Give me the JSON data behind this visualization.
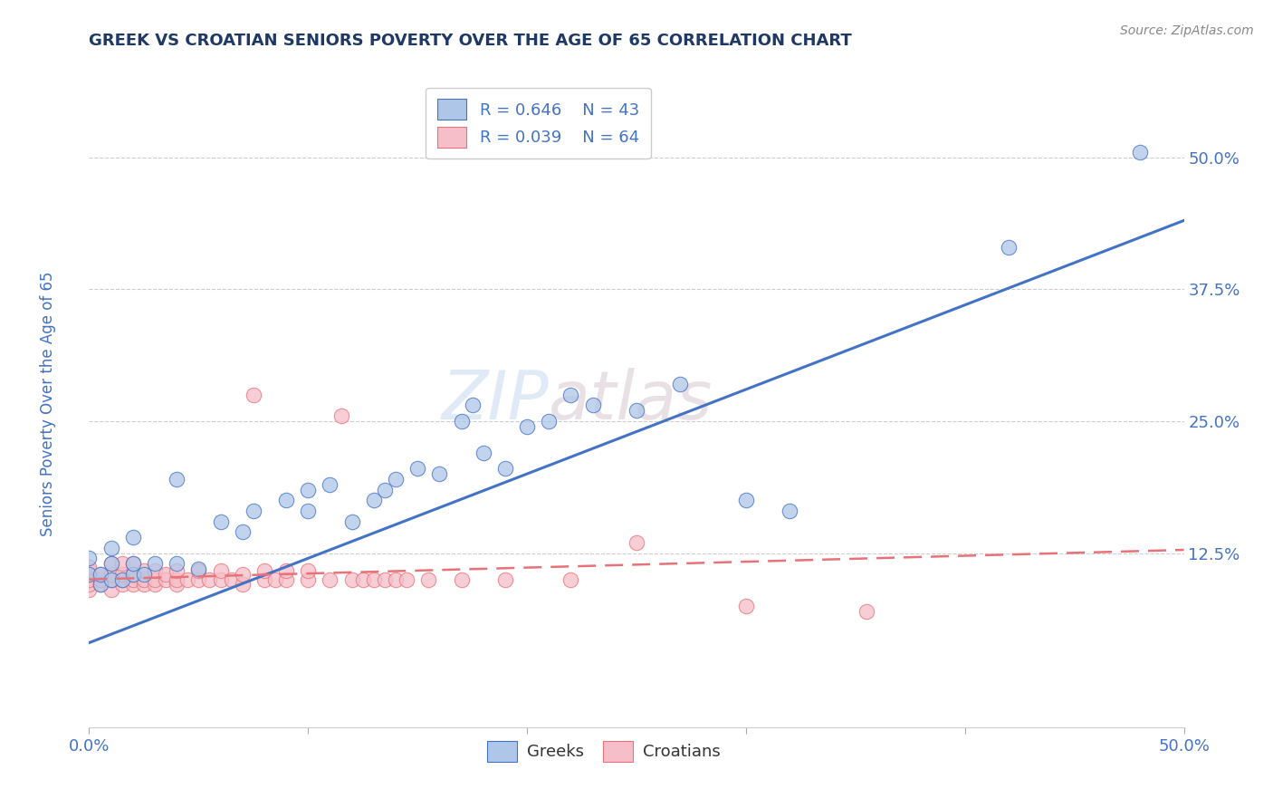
{
  "title": "GREEK VS CROATIAN SENIORS POVERTY OVER THE AGE OF 65 CORRELATION CHART",
  "source": "Source: ZipAtlas.com",
  "ylabel": "Seniors Poverty Over the Age of 65",
  "xlim": [
    0.0,
    0.5
  ],
  "ylim": [
    -0.04,
    0.58
  ],
  "xtick_positions": [
    0.0,
    0.1,
    0.2,
    0.3,
    0.4,
    0.5
  ],
  "xticklabels": [
    "0.0%",
    "",
    "",
    "",
    "",
    "50.0%"
  ],
  "ytick_positions": [
    0.125,
    0.25,
    0.375,
    0.5
  ],
  "ytick_labels": [
    "12.5%",
    "25.0%",
    "37.5%",
    "50.0%"
  ],
  "legend_r_greek": "R = 0.646",
  "legend_n_greek": "N = 43",
  "legend_r_croatian": "R = 0.039",
  "legend_n_croatian": "N = 64",
  "greek_color": "#aec6e8",
  "croatian_color": "#f5bec8",
  "greek_line_color": "#4472c4",
  "croatian_line_color": "#e8727a",
  "watermark_zip": "ZIP",
  "watermark_atlas": "atlas",
  "title_color": "#1f3864",
  "axis_label_color": "#4472c4",
  "tick_label_color": "#4472c4",
  "greek_scatter": [
    [
      0.0,
      0.105
    ],
    [
      0.0,
      0.12
    ],
    [
      0.005,
      0.095
    ],
    [
      0.005,
      0.105
    ],
    [
      0.01,
      0.1
    ],
    [
      0.01,
      0.115
    ],
    [
      0.01,
      0.13
    ],
    [
      0.015,
      0.1
    ],
    [
      0.02,
      0.105
    ],
    [
      0.02,
      0.115
    ],
    [
      0.02,
      0.14
    ],
    [
      0.025,
      0.105
    ],
    [
      0.03,
      0.115
    ],
    [
      0.04,
      0.115
    ],
    [
      0.04,
      0.195
    ],
    [
      0.05,
      0.11
    ],
    [
      0.06,
      0.155
    ],
    [
      0.07,
      0.145
    ],
    [
      0.075,
      0.165
    ],
    [
      0.09,
      0.175
    ],
    [
      0.1,
      0.165
    ],
    [
      0.1,
      0.185
    ],
    [
      0.11,
      0.19
    ],
    [
      0.12,
      0.155
    ],
    [
      0.13,
      0.175
    ],
    [
      0.135,
      0.185
    ],
    [
      0.14,
      0.195
    ],
    [
      0.15,
      0.205
    ],
    [
      0.16,
      0.2
    ],
    [
      0.17,
      0.25
    ],
    [
      0.175,
      0.265
    ],
    [
      0.18,
      0.22
    ],
    [
      0.19,
      0.205
    ],
    [
      0.2,
      0.245
    ],
    [
      0.21,
      0.25
    ],
    [
      0.22,
      0.275
    ],
    [
      0.23,
      0.265
    ],
    [
      0.25,
      0.26
    ],
    [
      0.27,
      0.285
    ],
    [
      0.3,
      0.175
    ],
    [
      0.32,
      0.165
    ],
    [
      0.42,
      0.415
    ],
    [
      0.48,
      0.505
    ]
  ],
  "croatian_scatter": [
    [
      0.0,
      0.09
    ],
    [
      0.0,
      0.095
    ],
    [
      0.0,
      0.1
    ],
    [
      0.0,
      0.105
    ],
    [
      0.0,
      0.108
    ],
    [
      0.0,
      0.112
    ],
    [
      0.005,
      0.095
    ],
    [
      0.005,
      0.1
    ],
    [
      0.005,
      0.105
    ],
    [
      0.01,
      0.09
    ],
    [
      0.01,
      0.1
    ],
    [
      0.01,
      0.105
    ],
    [
      0.01,
      0.115
    ],
    [
      0.015,
      0.095
    ],
    [
      0.015,
      0.1
    ],
    [
      0.015,
      0.105
    ],
    [
      0.015,
      0.115
    ],
    [
      0.02,
      0.095
    ],
    [
      0.02,
      0.1
    ],
    [
      0.02,
      0.105
    ],
    [
      0.02,
      0.115
    ],
    [
      0.025,
      0.095
    ],
    [
      0.025,
      0.1
    ],
    [
      0.025,
      0.108
    ],
    [
      0.03,
      0.095
    ],
    [
      0.03,
      0.1
    ],
    [
      0.03,
      0.108
    ],
    [
      0.035,
      0.1
    ],
    [
      0.035,
      0.105
    ],
    [
      0.04,
      0.095
    ],
    [
      0.04,
      0.1
    ],
    [
      0.04,
      0.108
    ],
    [
      0.045,
      0.1
    ],
    [
      0.05,
      0.1
    ],
    [
      0.05,
      0.108
    ],
    [
      0.055,
      0.1
    ],
    [
      0.06,
      0.1
    ],
    [
      0.06,
      0.108
    ],
    [
      0.065,
      0.1
    ],
    [
      0.07,
      0.095
    ],
    [
      0.07,
      0.105
    ],
    [
      0.075,
      0.275
    ],
    [
      0.08,
      0.1
    ],
    [
      0.08,
      0.108
    ],
    [
      0.085,
      0.1
    ],
    [
      0.09,
      0.1
    ],
    [
      0.09,
      0.108
    ],
    [
      0.1,
      0.1
    ],
    [
      0.1,
      0.108
    ],
    [
      0.11,
      0.1
    ],
    [
      0.115,
      0.255
    ],
    [
      0.12,
      0.1
    ],
    [
      0.125,
      0.1
    ],
    [
      0.13,
      0.1
    ],
    [
      0.135,
      0.1
    ],
    [
      0.14,
      0.1
    ],
    [
      0.145,
      0.1
    ],
    [
      0.155,
      0.1
    ],
    [
      0.17,
      0.1
    ],
    [
      0.19,
      0.1
    ],
    [
      0.22,
      0.1
    ],
    [
      0.25,
      0.135
    ],
    [
      0.3,
      0.075
    ],
    [
      0.355,
      0.07
    ]
  ],
  "greek_trendline": [
    [
      0.0,
      0.04
    ],
    [
      0.5,
      0.44
    ]
  ],
  "croatian_trendline": [
    [
      0.0,
      0.1
    ],
    [
      0.5,
      0.128
    ]
  ]
}
